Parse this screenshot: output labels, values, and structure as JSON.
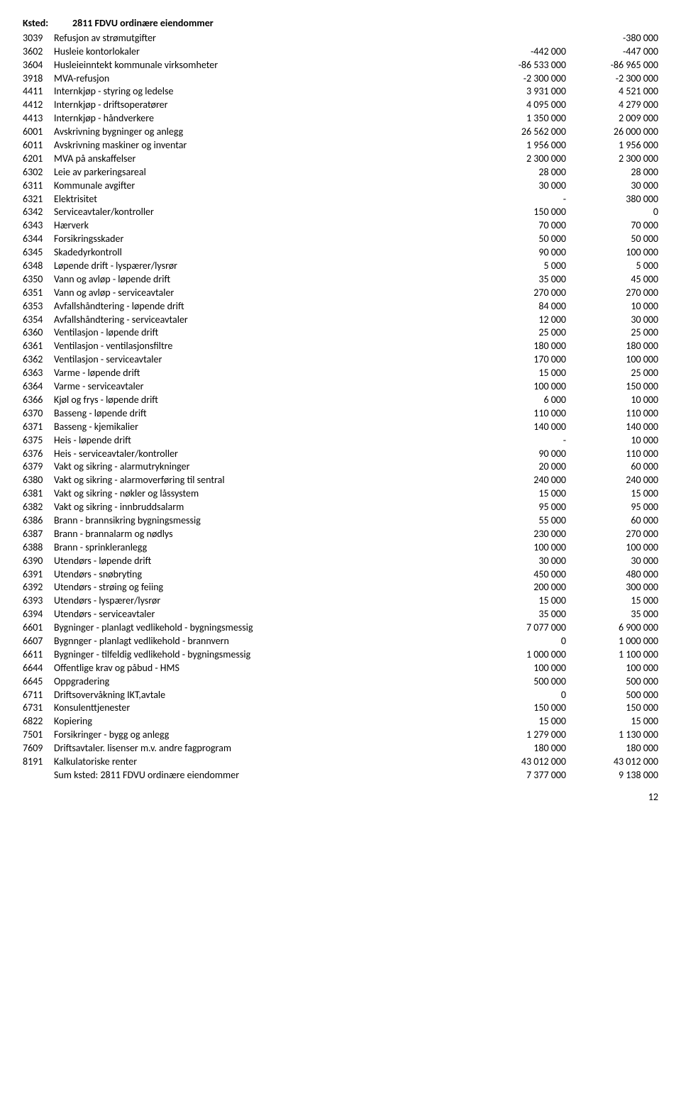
{
  "header": {
    "label": "Ksted:",
    "title": "2811 FDVU ordinære eiendommer"
  },
  "rows": [
    {
      "code": "3039",
      "label": "Refusjon av strømutgifter",
      "c1": "",
      "c2": "-380 000"
    },
    {
      "code": "3602",
      "label": "Husleie kontorlokaler",
      "c1": "-442 000",
      "c2": "-447 000"
    },
    {
      "code": "3604",
      "label": "Husleieinntekt kommunale virksomheter",
      "c1": "-86 533 000",
      "c2": "-86 965 000"
    },
    {
      "code": "3918",
      "label": "MVA-refusjon",
      "c1": "-2 300 000",
      "c2": "-2 300 000"
    },
    {
      "code": "4411",
      "label": "Internkjøp - styring og ledelse",
      "c1": "3 931 000",
      "c2": "4 521 000"
    },
    {
      "code": "4412",
      "label": "Internkjøp - driftsoperatører",
      "c1": "4 095 000",
      "c2": "4 279 000"
    },
    {
      "code": "4413",
      "label": "Internkjøp - håndverkere",
      "c1": "1 350 000",
      "c2": "2 009 000"
    },
    {
      "code": "6001",
      "label": "Avskrivning bygninger og anlegg",
      "c1": "26 562 000",
      "c2": "26 000 000"
    },
    {
      "code": "6011",
      "label": "Avskrivning maskiner og inventar",
      "c1": "1 956 000",
      "c2": "1 956 000"
    },
    {
      "code": "6201",
      "label": "MVA på anskaffelser",
      "c1": "2 300 000",
      "c2": "2 300 000"
    },
    {
      "code": "6302",
      "label": "Leie av parkeringsareal",
      "c1": "28 000",
      "c2": "28 000"
    },
    {
      "code": "6311",
      "label": "Kommunale avgifter",
      "c1": "30 000",
      "c2": "30 000"
    },
    {
      "code": "6321",
      "label": "Elektrisitet",
      "c1": "-",
      "c2": "380 000"
    },
    {
      "code": "6342",
      "label": "Serviceavtaler/kontroller",
      "c1": "150 000",
      "c2": "0"
    },
    {
      "code": "6343",
      "label": "Hærverk",
      "c1": "70 000",
      "c2": "70 000"
    },
    {
      "code": "6344",
      "label": "Forsikringsskader",
      "c1": "50 000",
      "c2": "50 000"
    },
    {
      "code": "6345",
      "label": "Skadedyrkontroll",
      "c1": "90 000",
      "c2": "100 000"
    },
    {
      "code": "6348",
      "label": "Løpende drift - lyspærer/lysrør",
      "c1": "5 000",
      "c2": "5 000"
    },
    {
      "code": "6350",
      "label": "Vann og avløp - løpende drift",
      "c1": "35 000",
      "c2": "45 000"
    },
    {
      "code": "6351",
      "label": "Vann og avløp - serviceavtaler",
      "c1": "270 000",
      "c2": "270 000"
    },
    {
      "code": "6353",
      "label": "Avfallshåndtering - løpende drift",
      "c1": "84 000",
      "c2": "10 000"
    },
    {
      "code": "6354",
      "label": "Avfallshåndtering - serviceavtaler",
      "c1": "12 000",
      "c2": "30 000"
    },
    {
      "code": "6360",
      "label": "Ventilasjon - løpende drift",
      "c1": "25 000",
      "c2": "25 000"
    },
    {
      "code": "6361",
      "label": "Ventilasjon - ventilasjonsfiltre",
      "c1": "180 000",
      "c2": "180 000"
    },
    {
      "code": "6362",
      "label": "Ventilasjon - serviceavtaler",
      "c1": "170 000",
      "c2": "100 000"
    },
    {
      "code": "6363",
      "label": "Varme - løpende drift",
      "c1": "15 000",
      "c2": "25 000"
    },
    {
      "code": "6364",
      "label": "Varme - serviceavtaler",
      "c1": "100 000",
      "c2": "150 000"
    },
    {
      "code": "6366",
      "label": "Kjøl og frys - løpende drift",
      "c1": "6 000",
      "c2": "10 000"
    },
    {
      "code": "6370",
      "label": "Basseng - løpende drift",
      "c1": "110 000",
      "c2": "110 000"
    },
    {
      "code": "6371",
      "label": "Basseng - kjemikalier",
      "c1": "140 000",
      "c2": "140 000"
    },
    {
      "code": "6375",
      "label": "Heis - løpende drift",
      "c1": "-",
      "c2": "10 000"
    },
    {
      "code": "6376",
      "label": "Heis - serviceavtaler/kontroller",
      "c1": "90 000",
      "c2": "110 000"
    },
    {
      "code": "6379",
      "label": "Vakt og sikring - alarmutrykninger",
      "c1": "20 000",
      "c2": "60 000"
    },
    {
      "code": "6380",
      "label": "Vakt og sikring - alarmoverføring til sentral",
      "c1": "240 000",
      "c2": "240 000"
    },
    {
      "code": "6381",
      "label": "Vakt og sikring - nøkler og låssystem",
      "c1": "15 000",
      "c2": "15 000"
    },
    {
      "code": "6382",
      "label": "Vakt og sikring - innbruddsalarm",
      "c1": "95 000",
      "c2": "95 000"
    },
    {
      "code": "6386",
      "label": "Brann - brannsikring bygningsmessig",
      "c1": "55 000",
      "c2": "60 000"
    },
    {
      "code": "6387",
      "label": "Brann - brannalarm og nødlys",
      "c1": "230 000",
      "c2": "270 000"
    },
    {
      "code": "6388",
      "label": "Brann - sprinkleranlegg",
      "c1": "100 000",
      "c2": "100 000"
    },
    {
      "code": "6390",
      "label": "Utendørs - løpende drift",
      "c1": "30 000",
      "c2": "30 000"
    },
    {
      "code": "6391",
      "label": "Utendørs - snøbryting",
      "c1": "450 000",
      "c2": "480 000"
    },
    {
      "code": "6392",
      "label": "Utendørs - strøing og feiing",
      "c1": "200 000",
      "c2": "300 000"
    },
    {
      "code": "6393",
      "label": "Utendørs - lyspærer/lysrør",
      "c1": "15 000",
      "c2": "15 000"
    },
    {
      "code": "6394",
      "label": "Utendørs - serviceavtaler",
      "c1": "35 000",
      "c2": "35 000"
    },
    {
      "code": "6601",
      "label": "Bygninger - planlagt vedlikehold - bygningsmessig",
      "c1": "7 077 000",
      "c2": "6 900 000"
    },
    {
      "code": "6607",
      "label": "Bygnnger - planlagt vedlikehold - brannvern",
      "c1": "0",
      "c2": "1 000 000"
    },
    {
      "code": "6611",
      "label": "Bygninger - tilfeldig vedlikehold - bygningsmessig",
      "c1": "1 000 000",
      "c2": "1 100 000"
    },
    {
      "code": "6644",
      "label": "Offentlige krav og påbud - HMS",
      "c1": "100 000",
      "c2": "100 000"
    },
    {
      "code": "6645",
      "label": "Oppgradering",
      "c1": "500 000",
      "c2": "500 000"
    },
    {
      "code": "6711",
      "label": "Driftsovervåkning IKT,avtale",
      "c1": "0",
      "c2": "500 000"
    },
    {
      "code": "6731",
      "label": "Konsulenttjenester",
      "c1": "150 000",
      "c2": "150 000"
    },
    {
      "code": "6822",
      "label": "Kopiering",
      "c1": "15 000",
      "c2": "15 000"
    },
    {
      "code": "7501",
      "label": "Forsikringer - bygg og anlegg",
      "c1": "1 279 000",
      "c2": "1 130 000"
    },
    {
      "code": "7609",
      "label": "Driftsavtaler. lisenser m.v. andre fagprogram",
      "c1": "180 000",
      "c2": "180 000"
    },
    {
      "code": "8191",
      "label": "Kalkulatoriske renter",
      "c1": "43 012 000",
      "c2": "43 012 000"
    }
  ],
  "sum": {
    "label": "Sum ksted: 2811 FDVU ordinære eiendommer",
    "c1": "7 377 000",
    "c2": "9 138 000"
  },
  "page_number": "12"
}
